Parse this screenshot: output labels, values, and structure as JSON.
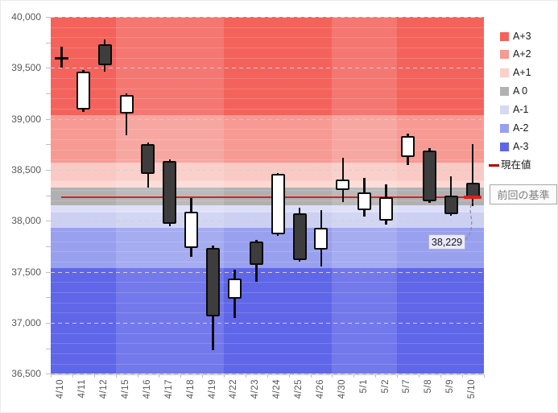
{
  "chart_data": {
    "type": "candlestick",
    "title": "",
    "ohlc_order": "open,high,low,close",
    "categories": [
      "4/10",
      "4/11",
      "4/12",
      "4/15",
      "4/16",
      "4/17",
      "4/18",
      "4/19",
      "4/22",
      "4/23",
      "4/24",
      "4/25",
      "4/26",
      "4/30",
      "5/1",
      "5/2",
      "5/7",
      "5/8",
      "5/9",
      "5/10"
    ],
    "candles": [
      [
        39590,
        39710,
        39505,
        39590
      ],
      [
        39090,
        39475,
        39070,
        39460
      ],
      [
        39735,
        39775,
        39460,
        39525
      ],
      [
        39050,
        39250,
        38840,
        39235
      ],
      [
        38750,
        38770,
        38330,
        38460
      ],
      [
        38590,
        38600,
        37945,
        37970
      ],
      [
        37735,
        38220,
        37650,
        38090
      ],
      [
        37735,
        37760,
        36735,
        37065
      ],
      [
        37235,
        37520,
        37050,
        37435
      ],
      [
        37800,
        37810,
        37400,
        37570
      ],
      [
        37870,
        38465,
        37855,
        38460
      ],
      [
        38075,
        38125,
        37600,
        37615
      ],
      [
        37720,
        38105,
        37555,
        37930
      ],
      [
        38300,
        38615,
        38185,
        38405
      ],
      [
        38105,
        38420,
        38040,
        38275
      ],
      [
        38000,
        38355,
        37965,
        38235
      ],
      [
        38630,
        38855,
        38550,
        38830
      ],
      [
        38690,
        38710,
        38180,
        38195
      ],
      [
        38250,
        38435,
        38050,
        38065
      ],
      [
        38370,
        38750,
        38145,
        38229
      ]
    ],
    "y_axis": {
      "min": 36500,
      "max": 40000,
      "major_step": 500,
      "minor_step": 100,
      "tick_labels": [
        "40,000",
        "39,500",
        "39,000",
        "38,500",
        "38,000",
        "37,500",
        "37,000",
        "36,500"
      ]
    },
    "zones": [
      {
        "label": "A+3",
        "from": 40000,
        "to": 39040,
        "color": "#f3635c"
      },
      {
        "label": "A+2",
        "from": 39040,
        "to": 38570,
        "color": "#f69a93"
      },
      {
        "label": "A+1",
        "from": 38570,
        "to": 38390,
        "color": "#fbc9c3"
      },
      {
        "label": "A+1",
        "from": 38390,
        "to": 38330,
        "color": "#fdd8d3"
      },
      {
        "label": "A 0",
        "from": 38330,
        "to": 38150,
        "color": "#b1b0b1"
      },
      {
        "label": "A-1",
        "from": 38150,
        "to": 38080,
        "color": "#dcddf6"
      },
      {
        "label": "A-1",
        "from": 38080,
        "to": 37930,
        "color": "#ccd0f2"
      },
      {
        "label": "A-2",
        "from": 37930,
        "to": 37540,
        "color": "#99a0ee"
      },
      {
        "label": "A-3",
        "from": 37540,
        "to": 36500,
        "color": "#5f66e7"
      }
    ],
    "week_shading": {
      "light_column_ranges": [
        [
          3,
          8
        ],
        [
          13,
          16
        ]
      ]
    },
    "legend": [
      {
        "label": "A+3",
        "color": "#f3635c",
        "marker": "square"
      },
      {
        "label": "A+2",
        "color": "#f69a93",
        "marker": "square"
      },
      {
        "label": "A+1",
        "color": "#fccfc9",
        "marker": "square"
      },
      {
        "label": "A 0",
        "color": "#b3b2b3",
        "marker": "square"
      },
      {
        "label": "A-1",
        "color": "#d6d8f4",
        "marker": "square"
      },
      {
        "label": "A-2",
        "color": "#99a0ee",
        "marker": "square"
      },
      {
        "label": "A-3",
        "color": "#5f66e7",
        "marker": "square"
      },
      {
        "label": "現在値",
        "color": "#b30000",
        "marker": "dash"
      }
    ],
    "current_value": 38229,
    "current_value_label": "38,229",
    "baseline_annotation": "前回の基準",
    "colors": {
      "current_line": "#dd1f1f",
      "bull_body": "#ffffff",
      "bear_body": "#3d3d3d",
      "candle_border": "#0a0a0a",
      "grid_major": "#d2ced2",
      "axis": "#bfbfbf",
      "tick_text": "#595959"
    }
  }
}
